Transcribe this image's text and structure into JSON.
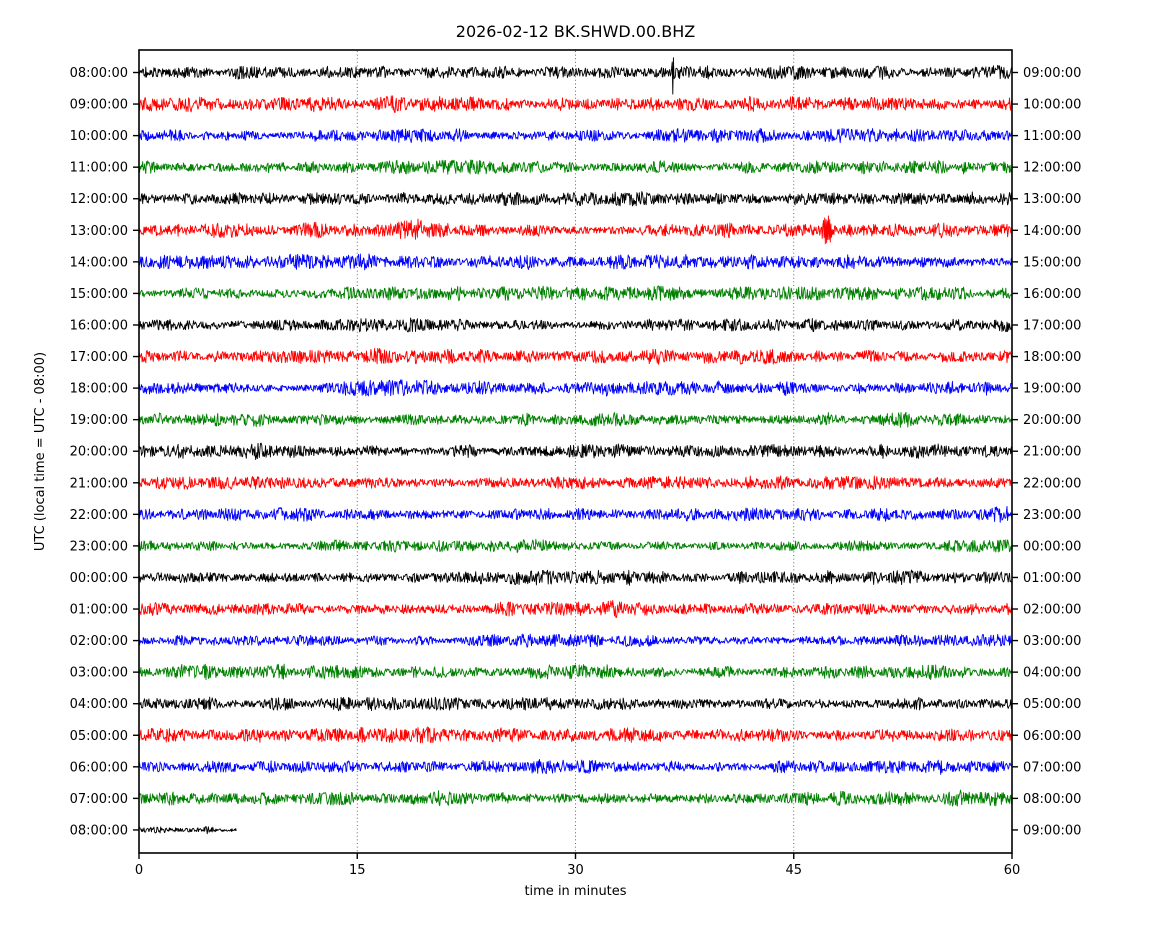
{
  "chart_data": {
    "type": "line",
    "subtype": "seismogram-dayplot-helicorder",
    "title": "2026-02-12 BK.SHWD.00.BHZ",
    "xlabel": "time in minutes",
    "ylabel": "UTC (local time = UTC - 08:00)",
    "station_id": "BK.SHWD.00.BHZ",
    "date": "2026-02-12",
    "utc_offset_note": "local time = UTC - 08:00",
    "x_range_minutes": [
      0,
      60
    ],
    "x_ticks": [
      0,
      15,
      30,
      45,
      60
    ],
    "grid_x_minutes": [
      15,
      30,
      45
    ],
    "interval_minutes": 60,
    "grid": "vertical dotted",
    "legend": "none",
    "color_cycle_names": [
      "black",
      "red",
      "blue",
      "green"
    ],
    "colors": {
      "black": "#000000",
      "red": "#ff0000",
      "blue": "#0000ff",
      "green": "#008000",
      "grid": "#555555",
      "frame": "#000000"
    },
    "amplitude_units": "fraction of row spacing (peak noise envelope)",
    "rows": [
      {
        "left_label": "08:00:00",
        "right_label": "09:00:00",
        "color": "black",
        "duration_minutes": 60,
        "base_amplitude": 0.17,
        "events": [
          {
            "time_min": 36.7,
            "amplitude": 0.55,
            "width_min": 0.07,
            "type": "spike"
          },
          {
            "time_min": 6.8,
            "amplitude": 0.1,
            "width_min": 0.4,
            "type": "burst"
          }
        ]
      },
      {
        "left_label": "09:00:00",
        "right_label": "10:00:00",
        "color": "red",
        "duration_minutes": 60,
        "base_amplitude": 0.18,
        "events": [
          {
            "time_min": 5.0,
            "amplitude": 0.08,
            "width_min": 1.2,
            "type": "burst"
          }
        ]
      },
      {
        "left_label": "10:00:00",
        "right_label": "11:00:00",
        "color": "blue",
        "duration_minutes": 60,
        "base_amplitude": 0.17,
        "events": []
      },
      {
        "left_label": "11:00:00",
        "right_label": "12:00:00",
        "color": "green",
        "duration_minutes": 60,
        "base_amplitude": 0.17,
        "events": []
      },
      {
        "left_label": "12:00:00",
        "right_label": "13:00:00",
        "color": "black",
        "duration_minutes": 60,
        "base_amplitude": 0.16,
        "events": []
      },
      {
        "left_label": "13:00:00",
        "right_label": "14:00:00",
        "color": "red",
        "duration_minutes": 60,
        "base_amplitude": 0.18,
        "events": [
          {
            "time_min": 19.0,
            "amplitude": 0.13,
            "width_min": 0.9,
            "type": "burst"
          },
          {
            "time_min": 47.3,
            "amplitude": 0.35,
            "width_min": 0.35,
            "type": "burst"
          }
        ]
      },
      {
        "left_label": "14:00:00",
        "right_label": "15:00:00",
        "color": "blue",
        "duration_minutes": 60,
        "base_amplitude": 0.17,
        "events": [
          {
            "time_min": 15.8,
            "amplitude": 0.1,
            "width_min": 0.5,
            "type": "burst"
          }
        ]
      },
      {
        "left_label": "15:00:00",
        "right_label": "16:00:00",
        "color": "green",
        "duration_minutes": 60,
        "base_amplitude": 0.16,
        "events": []
      },
      {
        "left_label": "16:00:00",
        "right_label": "17:00:00",
        "color": "black",
        "duration_minutes": 60,
        "base_amplitude": 0.15,
        "events": []
      },
      {
        "left_label": "17:00:00",
        "right_label": "18:00:00",
        "color": "red",
        "duration_minutes": 60,
        "base_amplitude": 0.17,
        "events": []
      },
      {
        "left_label": "18:00:00",
        "right_label": "19:00:00",
        "color": "blue",
        "duration_minutes": 60,
        "base_amplitude": 0.16,
        "events": []
      },
      {
        "left_label": "19:00:00",
        "right_label": "20:00:00",
        "color": "green",
        "duration_minutes": 60,
        "base_amplitude": 0.16,
        "events": []
      },
      {
        "left_label": "20:00:00",
        "right_label": "21:00:00",
        "color": "black",
        "duration_minutes": 60,
        "base_amplitude": 0.16,
        "events": []
      },
      {
        "left_label": "21:00:00",
        "right_label": "22:00:00",
        "color": "red",
        "duration_minutes": 60,
        "base_amplitude": 0.17,
        "events": []
      },
      {
        "left_label": "22:00:00",
        "right_label": "23:00:00",
        "color": "blue",
        "duration_minutes": 60,
        "base_amplitude": 0.16,
        "events": []
      },
      {
        "left_label": "23:00:00",
        "right_label": "00:00:00",
        "color": "green",
        "duration_minutes": 60,
        "base_amplitude": 0.16,
        "events": []
      },
      {
        "left_label": "00:00:00",
        "right_label": "01:00:00",
        "color": "black",
        "duration_minutes": 60,
        "base_amplitude": 0.16,
        "events": []
      },
      {
        "left_label": "01:00:00",
        "right_label": "02:00:00",
        "color": "red",
        "duration_minutes": 60,
        "base_amplitude": 0.17,
        "events": []
      },
      {
        "left_label": "02:00:00",
        "right_label": "03:00:00",
        "color": "blue",
        "duration_minutes": 60,
        "base_amplitude": 0.15,
        "events": []
      },
      {
        "left_label": "03:00:00",
        "right_label": "04:00:00",
        "color": "green",
        "duration_minutes": 60,
        "base_amplitude": 0.16,
        "events": []
      },
      {
        "left_label": "04:00:00",
        "right_label": "05:00:00",
        "color": "black",
        "duration_minutes": 60,
        "base_amplitude": 0.16,
        "events": []
      },
      {
        "left_label": "05:00:00",
        "right_label": "06:00:00",
        "color": "red",
        "duration_minutes": 60,
        "base_amplitude": 0.18,
        "events": []
      },
      {
        "left_label": "06:00:00",
        "right_label": "07:00:00",
        "color": "blue",
        "duration_minutes": 60,
        "base_amplitude": 0.16,
        "events": []
      },
      {
        "left_label": "07:00:00",
        "right_label": "08:00:00",
        "color": "green",
        "duration_minutes": 60,
        "base_amplitude": 0.17,
        "events": []
      },
      {
        "left_label": "08:00:00",
        "right_label": "09:00:00",
        "color": "black",
        "duration_minutes": 6.7,
        "base_amplitude": 0.1,
        "events": [
          {
            "time_min": 4.8,
            "amplitude": 0.06,
            "width_min": 0.3,
            "type": "burst"
          }
        ]
      }
    ]
  }
}
